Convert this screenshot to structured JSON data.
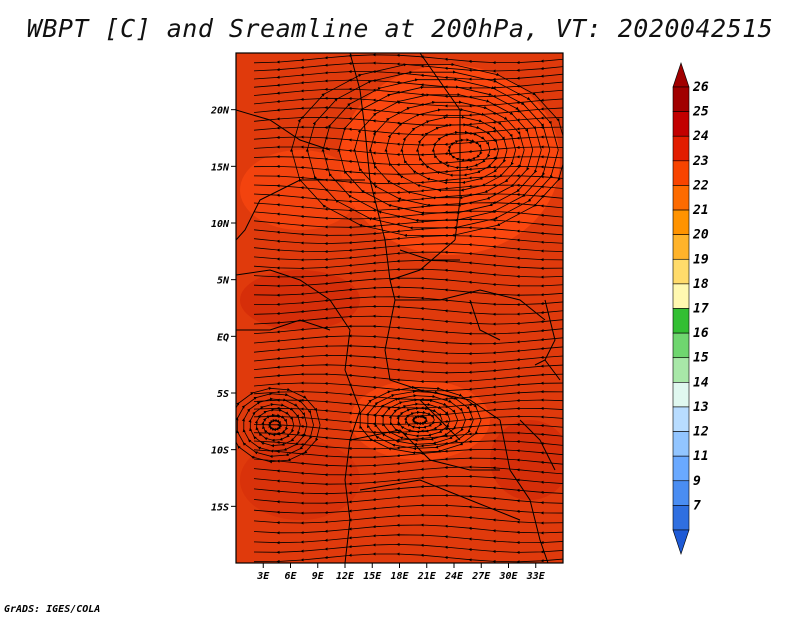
{
  "title": "WBPT [C] and Sreamline at 200hPa, VT: 2020042515",
  "credit": "GrADS: IGES/COLA",
  "map": {
    "lon_range": [
      0,
      36
    ],
    "lat_range": [
      -20,
      25
    ],
    "lat_ticks": [
      {
        "value": 20,
        "label": "20N"
      },
      {
        "value": 15,
        "label": "15N"
      },
      {
        "value": 10,
        "label": "10N"
      },
      {
        "value": 5,
        "label": "5N"
      },
      {
        "value": 0,
        "label": "EQ"
      },
      {
        "value": -5,
        "label": "5S"
      },
      {
        "value": -10,
        "label": "10S"
      },
      {
        "value": -15,
        "label": "15S"
      }
    ],
    "lon_ticks": [
      {
        "value": 3,
        "label": "3E"
      },
      {
        "value": 6,
        "label": "6E"
      },
      {
        "value": 9,
        "label": "9E"
      },
      {
        "value": 12,
        "label": "12E"
      },
      {
        "value": 15,
        "label": "15E"
      },
      {
        "value": 18,
        "label": "18E"
      },
      {
        "value": 21,
        "label": "21E"
      },
      {
        "value": 24,
        "label": "24E"
      },
      {
        "value": 27,
        "label": "27E"
      },
      {
        "value": 30,
        "label": "30E"
      },
      {
        "value": 33,
        "label": "33E"
      }
    ],
    "fill_colors": {
      "base": "#e03a0c",
      "warm": "#ff4a10",
      "cool": "#d22a08"
    }
  },
  "colorbar": {
    "levels": [
      {
        "label": "26",
        "color": "#a10000"
      },
      {
        "label": "25",
        "color": "#c20000"
      },
      {
        "label": "24",
        "color": "#e21d00"
      },
      {
        "label": "23",
        "color": "#f84400"
      },
      {
        "label": "22",
        "color": "#fd6b00"
      },
      {
        "label": "21",
        "color": "#ff9300"
      },
      {
        "label": "20",
        "color": "#ffb32a"
      },
      {
        "label": "19",
        "color": "#ffdb6b"
      },
      {
        "label": "18",
        "color": "#fff8b0"
      },
      {
        "label": "17",
        "color": "#33bf33"
      },
      {
        "label": "16",
        "color": "#6fd66f"
      },
      {
        "label": "15",
        "color": "#a8e8a8"
      },
      {
        "label": "14",
        "color": "#e0f8f0"
      },
      {
        "label": "13",
        "color": "#b8dcff"
      },
      {
        "label": "12",
        "color": "#92c5ff"
      },
      {
        "label": "11",
        "color": "#6aa9ff"
      },
      {
        "label": "9",
        "color": "#4a8df2"
      },
      {
        "label": "7",
        "color": "#2f6fe0"
      }
    ],
    "bottom_color": "#1e5ad6"
  }
}
